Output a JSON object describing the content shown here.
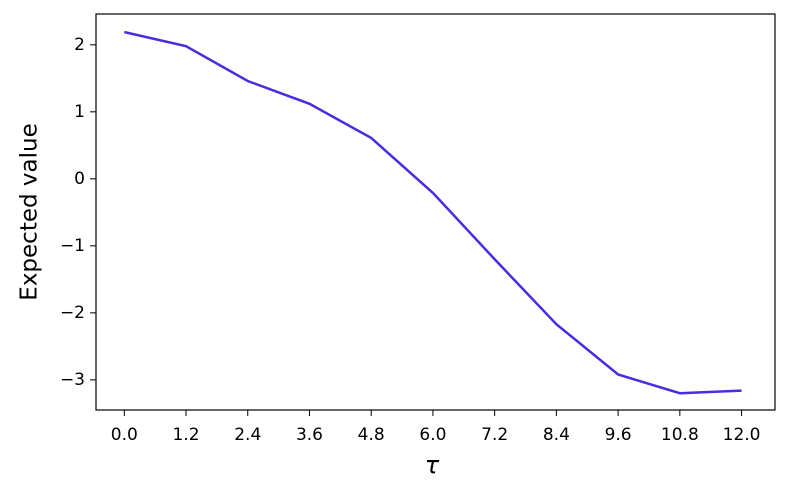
{
  "chart_data": {
    "type": "line",
    "x_label": "τ",
    "y_label": "Expected value",
    "x": [
      0,
      1.2,
      2.4,
      3.6,
      4.8,
      6.0,
      7.2,
      8.4,
      9.6,
      10.8,
      12.0
    ],
    "series": [
      {
        "color": "#4a2be0",
        "values": [
          2.19,
          1.98,
          1.46,
          1.12,
          0.61,
          -0.21,
          -1.2,
          -2.17,
          -2.92,
          -3.2,
          -3.16
        ]
      }
    ],
    "xlim": [
      -0.55,
      12.65
    ],
    "ylim": [
      -3.45,
      2.46
    ],
    "xticks": [
      {
        "value": 0,
        "label": "0.0"
      },
      1.2,
      2.4,
      3.6,
      4.8,
      {
        "value": 6,
        "label": "6.0"
      },
      7.2,
      8.4,
      9.6,
      10.8,
      {
        "value": 12,
        "label": "12.0"
      }
    ],
    "yticks": [
      {
        "value": -3,
        "label": "−3"
      },
      {
        "value": -2,
        "label": "−2"
      },
      {
        "value": -1,
        "label": "−1"
      },
      0,
      1,
      2
    ],
    "grid": false
  }
}
